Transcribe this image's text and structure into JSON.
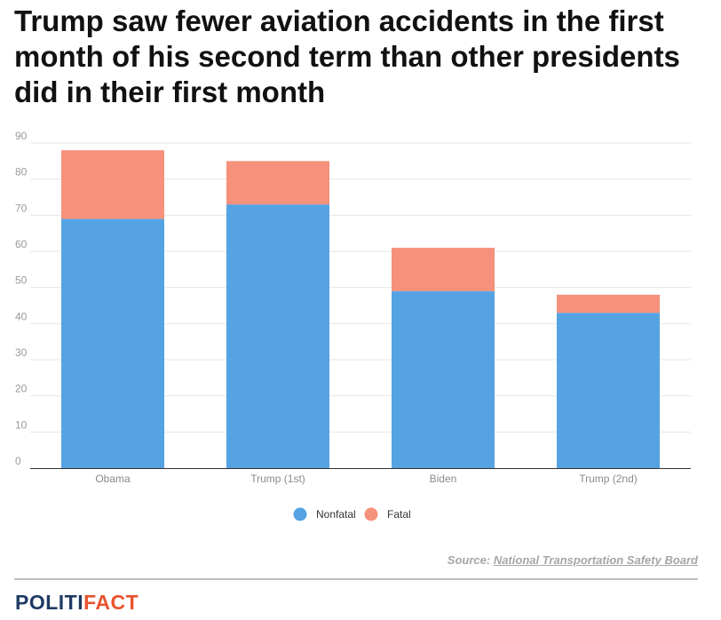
{
  "title": "Trump saw fewer aviation accidents in the first month of his second term than other presidents did in their first month",
  "colors": {
    "nonfatal": "#56a3e3",
    "fatal": "#f6917b",
    "grid": "#e6e6e6",
    "axis": "#333333"
  },
  "chart_data": {
    "type": "bar",
    "stacked": true,
    "categories": [
      "Obama",
      "Trump (1st)",
      "Biden",
      "Trump (2nd)"
    ],
    "series": [
      {
        "name": "Nonfatal",
        "values": [
          69,
          73,
          49,
          43
        ]
      },
      {
        "name": "Fatal",
        "values": [
          19,
          12,
          12,
          5
        ]
      }
    ],
    "ylim": [
      0,
      90
    ],
    "yticks": [
      0,
      10,
      20,
      30,
      40,
      50,
      60,
      70,
      80,
      90
    ],
    "title": "Trump saw fewer aviation accidents in the first month of his second term than other presidents did in their first month",
    "xlabel": "",
    "ylabel": "",
    "legend": "bottom-center",
    "grid": true
  },
  "source": {
    "prefix": "Source:",
    "name": "National Transportation Safety Board"
  },
  "logo": {
    "part1": "POLITI",
    "part2": "FACT"
  }
}
